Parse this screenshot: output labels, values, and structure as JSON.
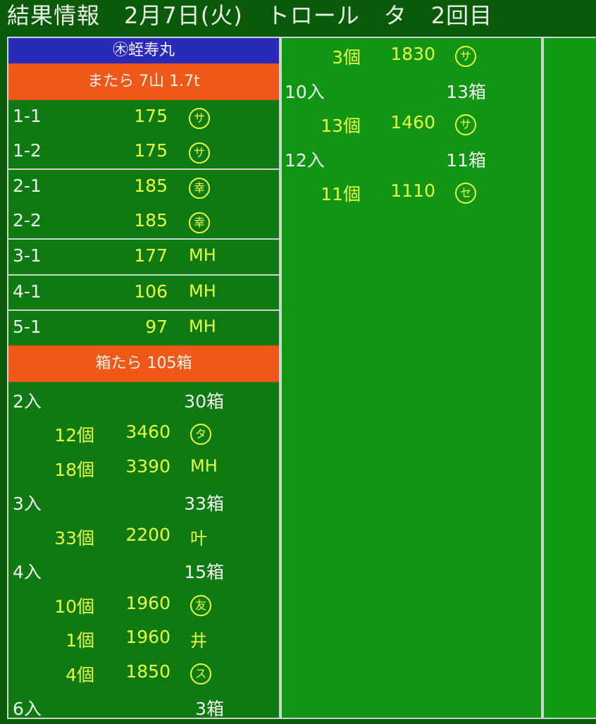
{
  "header": {
    "title": "結果情報",
    "date": "2月7日(火)",
    "method": "トロール",
    "session": "タ",
    "round": "2回目"
  },
  "vessel": {
    "name": "㊍蛭寿丸"
  },
  "section1": {
    "label": "またら 7山 1.7t",
    "rows": [
      {
        "lot": "1-1",
        "price": "175",
        "buyer": "サ",
        "circled": true
      },
      {
        "lot": "1-2",
        "price": "175",
        "buyer": "サ",
        "circled": true
      },
      {
        "lot": "2-1",
        "price": "185",
        "buyer": "幸",
        "circled": true
      },
      {
        "lot": "2-2",
        "price": "185",
        "buyer": "幸",
        "circled": true
      },
      {
        "lot": "3-1",
        "price": "177",
        "buyer": "MH",
        "circled": false
      },
      {
        "lot": "4-1",
        "price": "106",
        "buyer": "MH",
        "circled": false
      },
      {
        "lot": "5-1",
        "price": "97",
        "buyer": "MH",
        "circled": false
      }
    ]
  },
  "section2": {
    "label": "箱たら 105箱",
    "left": [
      {
        "type": "group",
        "count": "2入",
        "boxes": "30箱"
      },
      {
        "type": "item",
        "qty": "12個",
        "price": "3460",
        "buyer": "タ",
        "circled": true
      },
      {
        "type": "item",
        "qty": "18個",
        "price": "3390",
        "buyer": "MH",
        "circled": false
      },
      {
        "type": "group",
        "count": "3入",
        "boxes": "33箱"
      },
      {
        "type": "item",
        "qty": "33個",
        "price": "2200",
        "buyer": "叶",
        "circled": false
      },
      {
        "type": "group",
        "count": "4入",
        "boxes": "15箱"
      },
      {
        "type": "item",
        "qty": "10個",
        "price": "1960",
        "buyer": "友",
        "circled": true
      },
      {
        "type": "item",
        "qty": "1個",
        "price": "1960",
        "buyer": "井",
        "circled": false
      },
      {
        "type": "item",
        "qty": "4個",
        "price": "1850",
        "buyer": "ス",
        "circled": true
      },
      {
        "type": "group",
        "count": "6入",
        "boxes": "3箱"
      }
    ],
    "right": [
      {
        "type": "item",
        "qty": "3個",
        "price": "1830",
        "buyer": "サ",
        "circled": true
      },
      {
        "type": "group",
        "count": "10入",
        "boxes": "13箱"
      },
      {
        "type": "item",
        "qty": "13個",
        "price": "1460",
        "buyer": "サ",
        "circled": true
      },
      {
        "type": "group",
        "count": "12入",
        "boxes": "11箱"
      },
      {
        "type": "item",
        "qty": "11個",
        "price": "1110",
        "buyer": "セ",
        "circled": true
      }
    ]
  }
}
